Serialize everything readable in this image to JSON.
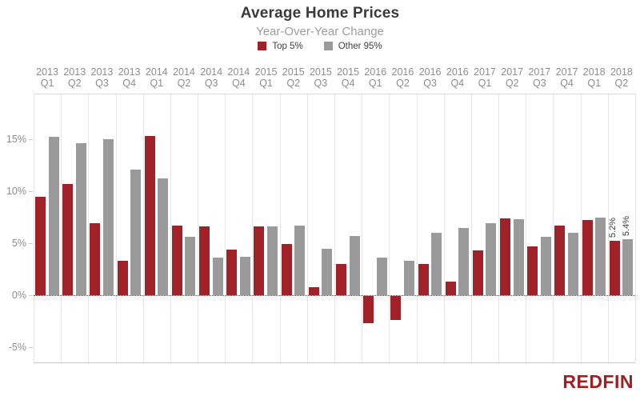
{
  "header": {
    "title": "Average Home Prices",
    "subtitle": "Year-Over-Year Change"
  },
  "legend": [
    {
      "label": "Top 5%",
      "color": "#a02127"
    },
    {
      "label": "Other 95%",
      "color": "#9a9a9a"
    }
  ],
  "logo": {
    "text": "REDFIN",
    "color": "#a02021"
  },
  "chart_data": {
    "type": "bar",
    "title": "Average Home Prices",
    "subtitle": "Year-Over-Year Change",
    "categories": [
      "2013 Q1",
      "2013 Q2",
      "2013 Q3",
      "2013 Q4",
      "2014 Q1",
      "2014 Q2",
      "2014 Q3",
      "2014 Q4",
      "2015 Q1",
      "2015 Q2",
      "2015 Q3",
      "2015 Q4",
      "2016 Q1",
      "2016 Q2",
      "2016 Q3",
      "2016 Q4",
      "2017 Q1",
      "2017 Q2",
      "2017 Q3",
      "2017 Q4",
      "2018 Q1",
      "2018 Q2"
    ],
    "series": [
      {
        "name": "Top 5%",
        "color": "#a02127",
        "values": [
          9.5,
          10.7,
          6.9,
          3.3,
          15.3,
          6.7,
          6.6,
          4.4,
          6.6,
          4.9,
          0.8,
          3.0,
          -2.6,
          -2.3,
          3.0,
          1.3,
          4.3,
          7.4,
          4.7,
          6.7,
          7.2,
          5.2
        ]
      },
      {
        "name": "Other 95%",
        "color": "#9a9a9a",
        "values": [
          15.2,
          14.6,
          15.0,
          12.1,
          11.2,
          5.6,
          3.6,
          3.7,
          6.6,
          6.7,
          4.5,
          5.7,
          3.6,
          3.3,
          6.0,
          6.5,
          6.9,
          7.3,
          5.6,
          6.0,
          7.5,
          5.4
        ]
      }
    ],
    "bar_labels": [
      {
        "series": "Top 5%",
        "category": "2018 Q2",
        "text": "5.2%"
      },
      {
        "series": "Other 95%",
        "category": "2018 Q2",
        "text": "5.4%"
      }
    ],
    "y_ticks": [
      {
        "value": 15,
        "label": "15%"
      },
      {
        "value": 10,
        "label": "10%"
      },
      {
        "value": 5,
        "label": "5%"
      },
      {
        "value": 0,
        "label": "0%"
      },
      {
        "value": -5,
        "label": "-5%"
      }
    ],
    "ylim": [
      -6.5,
      19.4
    ],
    "xlabel": "",
    "ylabel": "",
    "grid": "vertical-only",
    "zero_line": "dotted",
    "legend_position": "top",
    "category_axis_position": "top"
  }
}
